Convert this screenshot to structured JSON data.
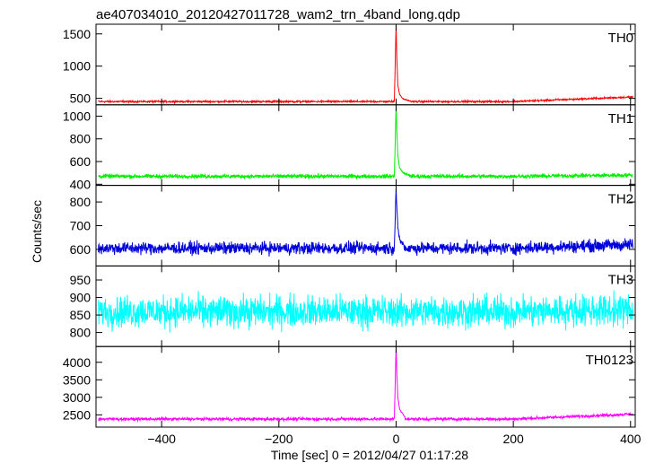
{
  "chart_data": {
    "type": "line",
    "title": "ae407034010_20120427011728_wam2_trn_4band_long.qdp",
    "xlabel": "Time [sec] 0 = 2012/04/27 01:17:28",
    "ylabel": "Counts/sec",
    "xlim": [
      -512,
      408
    ],
    "x_ticks": [
      -400,
      -200,
      0,
      200,
      400
    ],
    "panels": [
      {
        "name": "TH0",
        "color": "#ff0000",
        "ylim": [
          400,
          1650
        ],
        "y_ticks": [
          500,
          1000,
          1500
        ],
        "baseline": 450,
        "baseline_end": 520,
        "noise": 12,
        "peak": [
          {
            "x": -3,
            "y": 450
          },
          {
            "x": 0,
            "y": 1650
          },
          {
            "x": 1,
            "y": 1200
          },
          {
            "x": 3,
            "y": 700
          },
          {
            "x": 6,
            "y": 560
          },
          {
            "x": 12,
            "y": 490
          },
          {
            "x": 25,
            "y": 455
          }
        ]
      },
      {
        "name": "TH1",
        "color": "#00ee00",
        "ylim": [
          390,
          1100
        ],
        "y_ticks": [
          400,
          600,
          800,
          1000
        ],
        "baseline": 470,
        "baseline_end": 480,
        "noise": 15,
        "peak": [
          {
            "x": -3,
            "y": 470
          },
          {
            "x": 0,
            "y": 1100
          },
          {
            "x": 1,
            "y": 900
          },
          {
            "x": 3,
            "y": 650
          },
          {
            "x": 6,
            "y": 540
          },
          {
            "x": 12,
            "y": 500
          },
          {
            "x": 25,
            "y": 472
          }
        ]
      },
      {
        "name": "TH2",
        "color": "#0000dd",
        "ylim": [
          530,
          870
        ],
        "y_ticks": [
          600,
          700,
          800
        ],
        "baseline": 605,
        "baseline_end": 620,
        "noise": 22,
        "peak": [
          {
            "x": -3,
            "y": 610
          },
          {
            "x": 0,
            "y": 865
          },
          {
            "x": 1,
            "y": 780
          },
          {
            "x": 3,
            "y": 690
          },
          {
            "x": 6,
            "y": 640
          },
          {
            "x": 15,
            "y": 610
          }
        ]
      },
      {
        "name": "TH3",
        "color": "#00ffff",
        "ylim": [
          760,
          990
        ],
        "y_ticks": [
          800,
          850,
          900,
          950
        ],
        "baseline": 860,
        "baseline_end": 865,
        "noise": 38,
        "peak": []
      },
      {
        "name": "TH0123",
        "color": "#ff00ff",
        "ylim": [
          2150,
          4450
        ],
        "y_ticks": [
          2500,
          3000,
          3500,
          4000
        ],
        "baseline": 2380,
        "baseline_end": 2520,
        "noise": 35,
        "peak": [
          {
            "x": -3,
            "y": 2400
          },
          {
            "x": 0,
            "y": 4450
          },
          {
            "x": 1,
            "y": 3800
          },
          {
            "x": 3,
            "y": 3000
          },
          {
            "x": 6,
            "y": 2650
          },
          {
            "x": 15,
            "y": 2450
          }
        ]
      }
    ],
    "grid": false,
    "legend": "panel labels top-right"
  }
}
